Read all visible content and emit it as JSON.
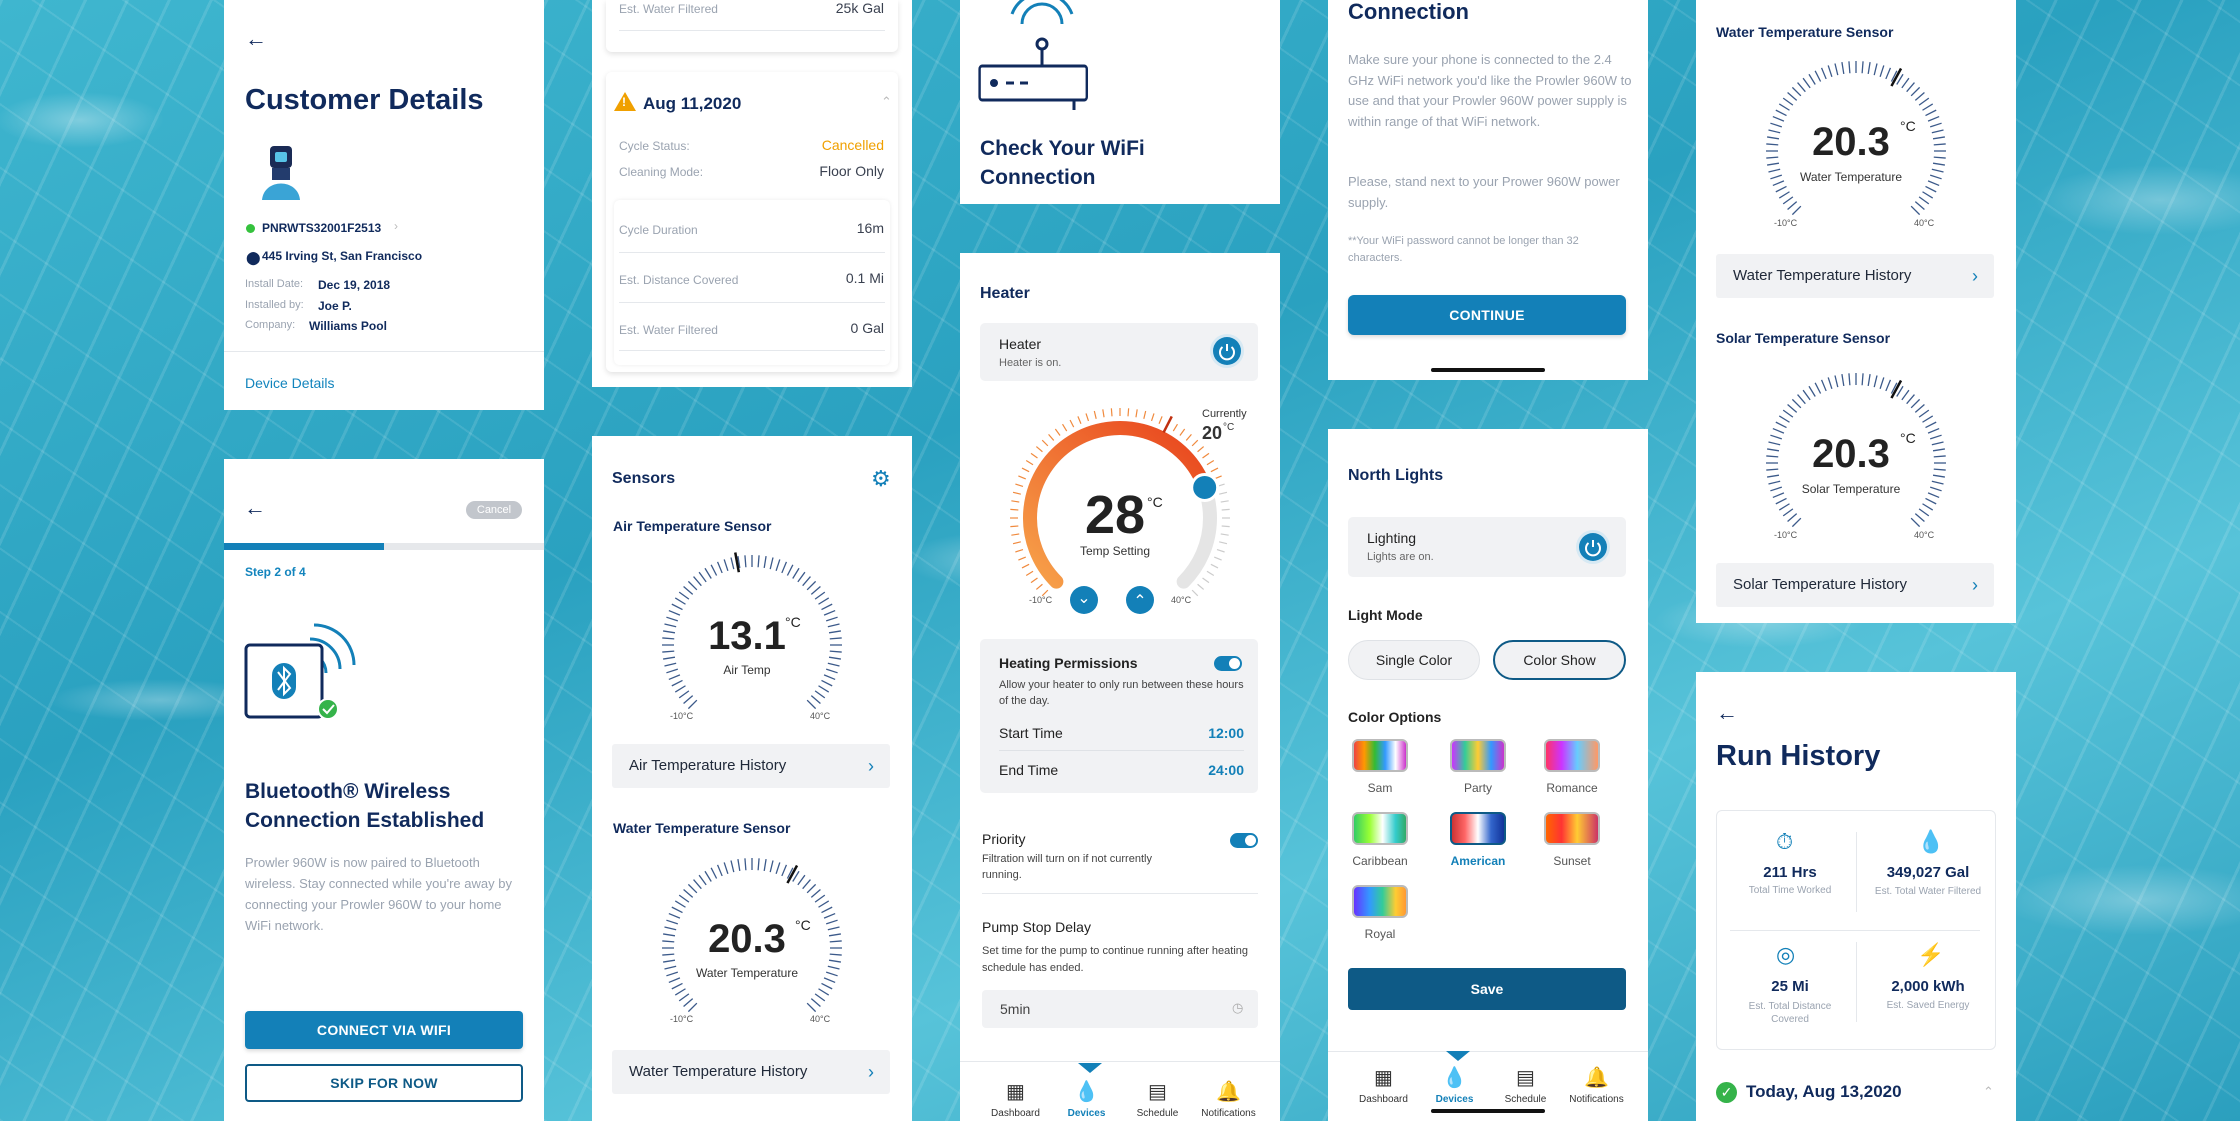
{
  "customer": {
    "title": "Customer Details",
    "serial": "PNRWTS32001F2513",
    "address": "445 Irving St, San Francisco",
    "install_date_label": "Install Date:",
    "install_date": "Dec 19, 2018",
    "installed_by_label": "Installed by:",
    "installed_by": "Joe P.",
    "company_label": "Company:",
    "company": "Williams Pool",
    "device_details": "Device Details",
    "status_color": "#35c23d"
  },
  "bt": {
    "cancel": "Cancel",
    "step": "Step 2 of 4",
    "progress": 0.5,
    "title": "Bluetooth® Wireless Connection Established",
    "body": "Prowler 960W is now paired to Bluetooth wireless. Stay connected while you're away by connecting your Prowler 960W to your home WiFi network.",
    "primary": "CONNECT VIA WIFI",
    "secondary": "SKIP FOR NOW"
  },
  "cycle": {
    "top_label": "Est. Water Filtered",
    "top_value": "25k Gal",
    "date": "Aug 11,2020",
    "status_label": "Cycle Status:",
    "status": "Cancelled",
    "status_color": "#f0a000",
    "mode_label": "Cleaning Mode:",
    "mode": "Floor Only",
    "duration_label": "Cycle Duration",
    "duration": "16m",
    "distance_label": "Est. Distance Covered",
    "distance": "0.1 Mi",
    "water_label": "Est. Water Filtered",
    "water": "0 Gal"
  },
  "sensors": {
    "title": "Sensors",
    "air_title": "Air Temperature Sensor",
    "air_value": "13.1",
    "air_label": "Air Temp",
    "air_history": "Air Temperature History",
    "water_title": "Water Temperature Sensor",
    "water_value": "20.3",
    "water_label": "Water Temperature",
    "water_history": "Water Temperature History",
    "unit": "°C",
    "min": "-10°C",
    "max": "40°C"
  },
  "wifi_check": {
    "title": "Check Your WiFi Connection"
  },
  "heater": {
    "section": "Heater",
    "card_title": "Heater",
    "card_sub": "Heater is on.",
    "setting": "28",
    "unit": "°C",
    "setting_label": "Temp Setting",
    "currently_label": "Currently",
    "currently": "20",
    "min": "-10°C",
    "max": "40°C",
    "perm_title": "Heating Permissions",
    "perm_body": "Allow your heater to only run between these hours of the day.",
    "start_label": "Start Time",
    "start": "12:00",
    "end_label": "End Time",
    "end": "24:00",
    "priority_title": "Priority",
    "priority_body": "Filtration will turn on if not currently running.",
    "delay_title": "Pump Stop Delay",
    "delay_body": "Set time for the pump to continue running after heating schedule has ended.",
    "delay_value": "5min",
    "tabs": [
      "Dashboard",
      "Devices",
      "Schedule",
      "Notifications"
    ]
  },
  "wifi_conn": {
    "title": "Connection",
    "p1": "Make sure your phone is connected to the 2.4 GHz WiFi network you'd like the Prowler 960W to use and that your Prowler 960W power supply is within range of that WiFi network.",
    "p2": "Please, stand next to your Prower 960W power supply.",
    "note": "**Your WiFi password cannot be longer than 32 characters.",
    "cta": "CONTINUE"
  },
  "lights": {
    "title": "North Lights",
    "card_title": "Lighting",
    "card_sub": "Lights are on.",
    "mode_title": "Light Mode",
    "mode_a": "Single Color",
    "mode_b": "Color Show",
    "options_title": "Color Options",
    "options": [
      "Sam",
      "Party",
      "Romance",
      "Caribbean",
      "American",
      "Sunset",
      "Royal"
    ],
    "selected": "American",
    "save": "Save",
    "tabs": [
      "Dashboard",
      "Devices",
      "Schedule",
      "Notifications"
    ]
  },
  "temp_sensors": {
    "water_title": "Water Temperature Sensor",
    "water_value": "20.3",
    "water_label": "Water Temperature",
    "water_history": "Water Temperature History",
    "solar_title": "Solar Temperature Sensor",
    "solar_value": "20.3",
    "solar_label": "Solar Temperature",
    "solar_history": "Solar Temperature History",
    "unit": "°C",
    "min": "-10°C",
    "max": "40°C"
  },
  "run": {
    "title": "Run History",
    "hrs": "211 Hrs",
    "hrs_label": "Total Time Worked",
    "gal": "349,027 Gal",
    "gal_label": "Est. Total Water Filtered",
    "mi": "25 Mi",
    "mi_label": "Est. Total Distance Covered",
    "kwh": "2,000 kWh",
    "kwh_label": "Est. Saved Energy",
    "today": "Today, Aug 13,2020"
  }
}
